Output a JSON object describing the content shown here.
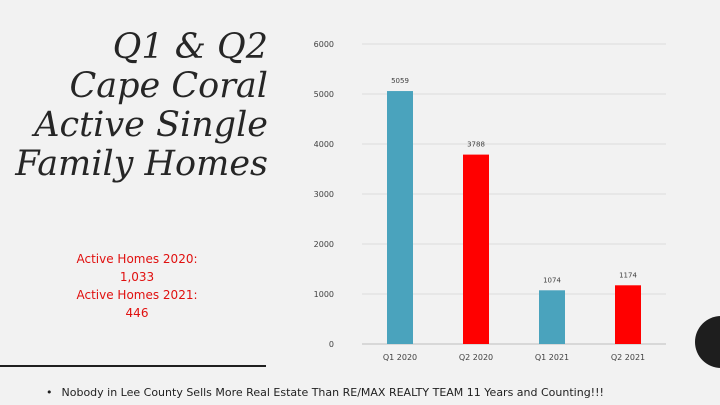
{
  "title_lines": [
    "Q1 & Q2",
    "Cape Coral",
    "Active Single",
    "Family Homes"
  ],
  "stats": {
    "line1": "Active Homes 2020:",
    "line2": "1,033",
    "line3": "Active Homes 2021:",
    "line4": "446"
  },
  "footer": {
    "bullet": "•",
    "text": "Nobody in Lee County Sells More Real Estate Than RE/MAX REALTY TEAM  11 Years and Counting!!!"
  },
  "colors": {
    "teal": "#4aa3bd",
    "red": "#ff0000",
    "stats_text": "#e0100f"
  },
  "chart_data": {
    "type": "bar",
    "categories": [
      "Q1 2020",
      "Q2 2020",
      "Q1 2021",
      "Q2 2021"
    ],
    "values": [
      5059,
      3788,
      1074,
      1174
    ],
    "bar_colors": [
      "#4aa3bd",
      "#ff0000",
      "#4aa3bd",
      "#ff0000"
    ],
    "ylim": [
      0,
      6000
    ],
    "yticks": [
      0,
      1000,
      2000,
      3000,
      4000,
      5000,
      6000
    ],
    "grid": true,
    "title": "",
    "xlabel": "",
    "ylabel": ""
  }
}
